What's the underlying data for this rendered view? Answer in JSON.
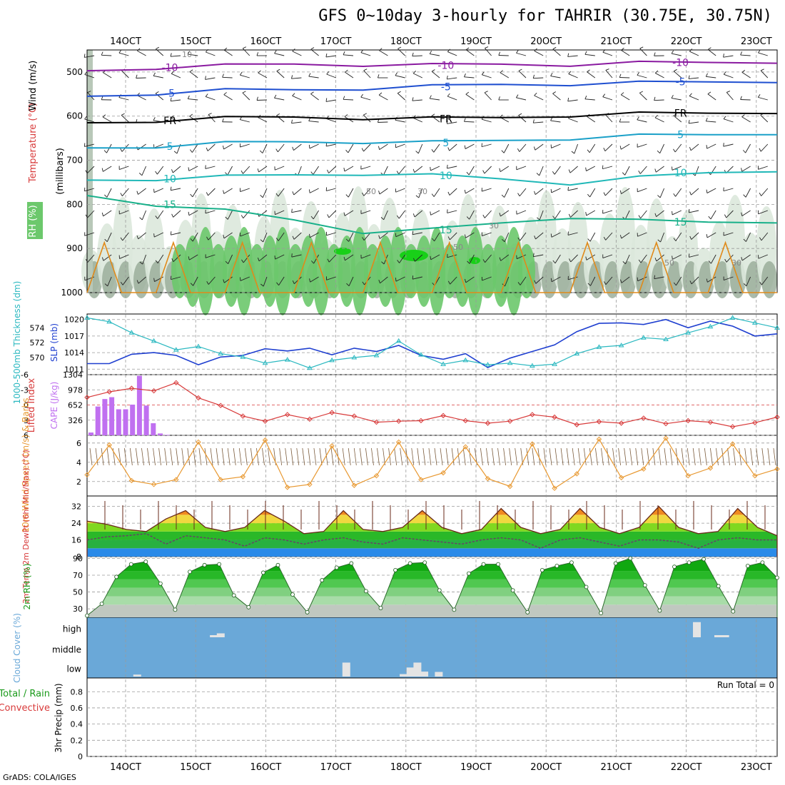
{
  "title": "GFS 0~10day 3-hourly for TAHRIR (30.75E, 30.75N)",
  "credit": "GrADS: COLA/IGES",
  "run_total": "Run Total = 0",
  "colors": {
    "grid": "#9a9a9a",
    "purple": "#8a1aa0",
    "blue": "#1f4fd0",
    "teal": "#1aa0c8",
    "green": "#18b08a",
    "orange": "#e08a1a",
    "slp": "#1f3fd0",
    "thick": "#2ab8c0",
    "li": "#d83a3a",
    "cape": "#c070f0",
    "wind": "#e89830",
    "cloud": "#6aa8d8"
  },
  "chart_data": [
    {
      "type": "heatmap",
      "name": "upper-air",
      "xticks": [
        "14OCT",
        "15OCT",
        "16OCT",
        "17OCT",
        "18OCT",
        "19OCT",
        "20OCT",
        "21OCT",
        "22OCT",
        "23OCT"
      ],
      "ylabels": {
        "rh": "RH (%)",
        "temp": "Temperature (°C)",
        "wind": "Wind (m/s)",
        "units": "(millibars)"
      },
      "yticks": [
        "500",
        "600",
        "700",
        "800",
        "900",
        "1000"
      ],
      "ylim": [
        1000,
        450
      ],
      "isotherms": [
        {
          "label": "-10",
          "color": "#8a1aa0",
          "values": [
            497,
            490,
            486,
            482,
            483,
            485,
            482,
            483,
            480,
            478,
            476
          ]
        },
        {
          "label": "-5",
          "color": "#1f4fd0",
          "values": [
            555,
            548,
            542,
            540,
            537,
            533,
            528,
            527,
            525,
            522,
            520
          ]
        },
        {
          "label": "FR",
          "color": "#000000",
          "values": [
            615,
            610,
            605,
            602,
            604,
            606,
            603,
            598,
            595,
            593,
            590
          ]
        },
        {
          "label": "5",
          "color": "#1aa0c8",
          "values": [
            672,
            668,
            662,
            658,
            658,
            660,
            655,
            650,
            645,
            642,
            638
          ]
        },
        {
          "label": "10",
          "color": "#20b8b8",
          "values": [
            745,
            742,
            738,
            733,
            730,
            735,
            742,
            752,
            740,
            728,
            722
          ]
        },
        {
          "label": "15",
          "color": "#18b08a",
          "values": [
            780,
            800,
            815,
            835,
            862,
            858,
            842,
            828,
            838,
            840,
            838
          ]
        }
      ],
      "contour_labels": [
        "10",
        "50",
        "30",
        "50",
        "30",
        "50",
        "30"
      ],
      "rh_ramp": [
        "#f3f9f3",
        "#dce8dc",
        "#b8c8b8",
        "#96aa96",
        "#6cc86c",
        "#40c040",
        "#18d018"
      ]
    },
    {
      "type": "line",
      "name": "slp-thickness",
      "ylabel_left": "1000-500mb Thickness (dm)",
      "ylabel_right": "SLP (mb)",
      "yticks_left": [
        "574",
        "572",
        "570"
      ],
      "yticks_right": [
        "1020",
        "1017",
        "1014",
        "1011"
      ],
      "ylim": [
        1010,
        1021
      ],
      "series": [
        {
          "name": "SLP (mb)",
          "values": [
            1012,
            1012,
            1013.7,
            1014,
            1013.5,
            1011.8,
            1013.2,
            1013.5,
            1014.7,
            1014.3,
            1014.8,
            1013.6,
            1014.8,
            1014.2,
            1015.3,
            1013.5,
            1012.8,
            1013.8,
            1011.3,
            1013,
            1014.2,
            1015.4,
            1017.8,
            1019.3,
            1019.4,
            1019.1,
            1020,
            1018.5,
            1019.7,
            1018.8,
            1017,
            1017.4
          ]
        },
        {
          "name": "1000-500mb Thickness (dm)",
          "values": [
            1020.3,
            1019.6,
            1017.6,
            1016.1,
            1014.5,
            1015.1,
            1013.8,
            1013.2,
            1012.1,
            1012.7,
            1011.2,
            1012.6,
            1013.1,
            1013.5,
            1016.1,
            1013.6,
            1011.9,
            1012.6,
            1011.8,
            1012.1,
            1011.6,
            1011.9,
            1013.8,
            1015,
            1015.3,
            1016.7,
            1016.4,
            1017.6,
            1018.7,
            1020.3,
            1019.4,
            1018.5
          ]
        }
      ]
    },
    {
      "type": "bar",
      "name": "cape-li",
      "ylabel_left": "Lifted Index",
      "ylabel_right": "CAPE (J/kg)",
      "yticks_left": [
        "-6",
        "-3",
        "0",
        "3",
        "6"
      ],
      "yticks_right": [
        "1304",
        "978",
        "652",
        "326",
        ""
      ],
      "cape_values": [
        60,
        620,
        780,
        820,
        560,
        560,
        660,
        1280,
        640,
        260,
        40,
        10
      ],
      "li_values": [
        -1.5,
        -2.6,
        -3.3,
        -2.8,
        -4.4,
        -1.4,
        0.1,
        2.2,
        3.2,
        1.9,
        2.8,
        1.5,
        2.2,
        3.4,
        3.2,
        3.1,
        2.1,
        3.1,
        3.6,
        3.2,
        1.9,
        2.4,
        3.9,
        3.3,
        3.6,
        2.6,
        3.7,
        3.1,
        3.4,
        4.3,
        3.5,
        2.4
      ],
      "li_ylim": [
        6,
        -6
      ],
      "cape_ylim": [
        0,
        1304
      ]
    },
    {
      "type": "line",
      "name": "wind",
      "ylabel": "10m Wind Speed (m/s) & Barbs",
      "yticks": [
        "6",
        "4",
        "2"
      ],
      "ylim": [
        0.5,
        6.8
      ],
      "series": [
        {
          "name": "10m Wind Speed",
          "values": [
            2.7,
            5.8,
            2.1,
            1.7,
            2.2,
            6.1,
            2.2,
            2.5,
            6.3,
            1.4,
            1.7,
            5.7,
            1.6,
            2.6,
            6.1,
            2.2,
            2.9,
            5.6,
            2.3,
            1.5,
            5.9,
            1.3,
            2.8,
            6.4,
            2.4,
            3.3,
            6.5,
            2.6,
            3.4,
            5.9,
            2.6,
            3.3
          ]
        }
      ]
    },
    {
      "type": "area",
      "name": "temperature",
      "ylabel": "2m Temp 2m DewPt (6hr Min/Max) (°C)",
      "yticks": [
        "32",
        "24",
        "16",
        "8"
      ],
      "ylim": [
        8,
        37
      ],
      "series": [
        {
          "name": "2m Temp",
          "values": [
            25,
            23.5,
            21,
            20,
            26,
            30,
            22,
            20,
            22,
            30,
            25,
            19,
            20,
            30,
            21,
            20,
            22,
            30,
            22,
            19,
            21,
            31,
            22,
            19,
            21,
            31,
            22,
            19,
            22,
            32,
            22,
            19,
            20,
            31,
            22,
            18
          ]
        },
        {
          "name": "2m DewPt",
          "values": [
            16,
            17.5,
            18,
            19,
            14,
            18,
            17,
            16,
            13,
            17,
            16,
            14,
            16,
            17,
            15,
            14,
            17,
            16,
            15,
            14,
            16,
            17,
            16,
            12,
            16,
            17,
            15,
            13,
            16,
            16,
            15,
            12,
            16,
            17,
            16,
            16
          ]
        }
      ],
      "temp_bands": [
        "#2a8ae8",
        "#28b040",
        "#2ab828",
        "#80d820",
        "#f0d840",
        "#f08a20",
        "#e85818"
      ]
    },
    {
      "type": "area",
      "name": "rh",
      "ylabel": "2m RH (%)",
      "yticks": [
        "90",
        "70",
        "50",
        "30"
      ],
      "ylim": [
        20,
        92
      ],
      "series": [
        {
          "name": "2m RH",
          "values": [
            22,
            36,
            68,
            83,
            86,
            60,
            29,
            74,
            82,
            83,
            46,
            32,
            73,
            82,
            47,
            26,
            64,
            79,
            84,
            51,
            31,
            76,
            84,
            85,
            52,
            29,
            72,
            83,
            83,
            52,
            26,
            76,
            81,
            85,
            56,
            25,
            84,
            90,
            58,
            28,
            80,
            85,
            89,
            57,
            27,
            81,
            85,
            67
          ]
        }
      ]
    },
    {
      "type": "bar",
      "name": "cloud",
      "ylabel": "Cloud Cover (%)",
      "yticks": [
        "high",
        "middle",
        "low"
      ],
      "cells": [
        {
          "level": "high",
          "t": 0.178,
          "h": 0.12
        },
        {
          "level": "high",
          "t": 0.188,
          "h": 0.22
        },
        {
          "level": "low",
          "t": 0.067,
          "h": 0.12
        },
        {
          "level": "low",
          "t": 0.37,
          "h": 0.85
        },
        {
          "level": "low",
          "t": 0.453,
          "h": 0.15
        },
        {
          "level": "low",
          "t": 0.463,
          "h": 0.55
        },
        {
          "level": "low",
          "t": 0.473,
          "h": 0.85
        },
        {
          "level": "low",
          "t": 0.483,
          "h": 0.3
        },
        {
          "level": "low",
          "t": 0.504,
          "h": 0.28
        },
        {
          "level": "high",
          "t": 0.878,
          "h": 0.85
        },
        {
          "level": "high",
          "t": 0.909,
          "h": 0.12
        },
        {
          "level": "high",
          "t": 0.919,
          "h": 0.12
        }
      ]
    },
    {
      "type": "bar",
      "name": "precip",
      "ylabel": "3hr Precip (mm)",
      "legend": [
        "Total / Rain",
        "Convective"
      ],
      "yticks": [
        "0.8",
        "0.6",
        "0.4",
        "0.2",
        "0"
      ],
      "ylim": [
        0,
        0.97
      ],
      "values": []
    }
  ]
}
